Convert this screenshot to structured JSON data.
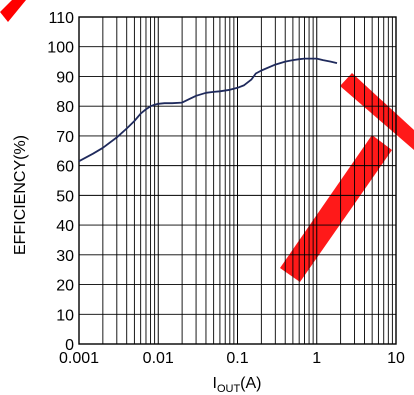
{
  "chart_data": {
    "type": "line",
    "xscale": "log",
    "xlim": [
      0.001,
      10
    ],
    "ylim": [
      0,
      110
    ],
    "xlabel": {
      "main": "I",
      "sub": "OUT",
      "unit": "(A)"
    },
    "ylabel": "EFFICIENCY(%)",
    "x_ticks": [
      {
        "value": 0.001,
        "label": "0.001"
      },
      {
        "value": 0.01,
        "label": "0.01"
      },
      {
        "value": 0.1,
        "label": "0.1"
      },
      {
        "value": 1,
        "label": "1"
      },
      {
        "value": 10,
        "label": "10"
      }
    ],
    "y_ticks": [
      0,
      10,
      20,
      30,
      40,
      50,
      60,
      70,
      80,
      90,
      100,
      110
    ],
    "grid": true,
    "series": [
      {
        "color": "#1f2a5c",
        "x": [
          0.001,
          0.0015,
          0.002,
          0.003,
          0.004,
          0.005,
          0.006,
          0.007,
          0.008,
          0.009,
          0.01,
          0.012,
          0.015,
          0.02,
          0.025,
          0.03,
          0.04,
          0.05,
          0.06,
          0.08,
          0.1,
          0.12,
          0.15,
          0.17,
          0.2,
          0.3,
          0.4,
          0.5,
          0.6,
          0.7,
          0.8,
          1.0,
          1.2,
          1.5,
          1.8
        ],
        "y": [
          61.5,
          64,
          66,
          69.5,
          72.5,
          75,
          77.5,
          79,
          80,
          80.5,
          80.8,
          81,
          81,
          81.2,
          82.5,
          83.5,
          84.5,
          84.8,
          85,
          85.5,
          86.2,
          87,
          89,
          91,
          92,
          94,
          95,
          95.5,
          95.8,
          96,
          96,
          96,
          95.5,
          95,
          94.5
        ]
      }
    ]
  },
  "colors": {
    "grid": "#000000",
    "watermark": "#ff0000"
  },
  "watermark_icon": "red-diagonal-stamp-marks"
}
